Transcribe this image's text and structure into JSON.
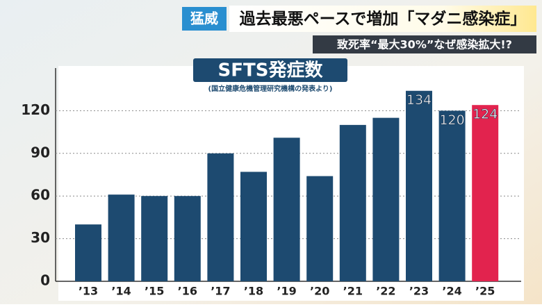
{
  "headline": {
    "tag": "猛威",
    "text": "過去最悪ペースで増加「マダニ感染症」",
    "subtitle": "致死率“最大30%”なぜ感染拡大!?"
  },
  "chart_data": {
    "type": "bar",
    "title": "SFTS発症数",
    "source": "(国立健康危機管理研究機構の発表より)",
    "categories": [
      "’13",
      "’14",
      "’15",
      "’16",
      "’17",
      "’18",
      "’19",
      "’20",
      "’21",
      "’22",
      "’23",
      "’24",
      "’25"
    ],
    "values": [
      40,
      61,
      60,
      60,
      90,
      77,
      101,
      74,
      110,
      115,
      134,
      120,
      124
    ],
    "value_labels": [
      null,
      null,
      null,
      null,
      null,
      null,
      null,
      null,
      null,
      null,
      "134",
      "120",
      "124"
    ],
    "colors": [
      "#1d4a70",
      "#1d4a70",
      "#1d4a70",
      "#1d4a70",
      "#1d4a70",
      "#1d4a70",
      "#1d4a70",
      "#1d4a70",
      "#1d4a70",
      "#1d4a70",
      "#1d4a70",
      "#1d4a70",
      "#e2234e"
    ],
    "ylim": [
      0,
      150
    ],
    "yticks": [
      0,
      30,
      60,
      90,
      120
    ],
    "grid": true
  }
}
